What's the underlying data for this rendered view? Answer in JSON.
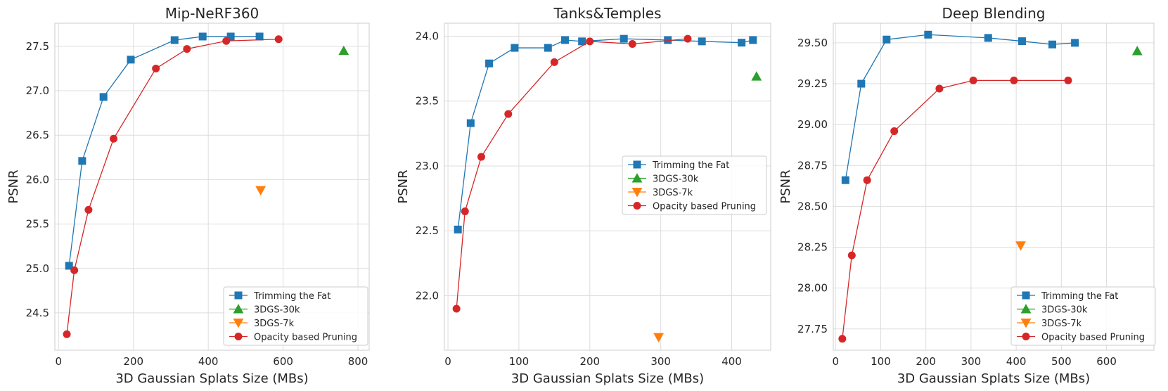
{
  "chart_data": [
    {
      "type": "line",
      "title": "Mip-NeRF360",
      "xlabel": "3D Gaussian Splats Size (MBs)",
      "ylabel": "PSNR",
      "xlim": [
        -10,
        830
      ],
      "ylim": [
        24.08,
        27.76
      ],
      "xticks": [
        0,
        200,
        400,
        600,
        800
      ],
      "yticks": [
        24.5,
        25.0,
        25.5,
        26.0,
        26.5,
        27.0,
        27.5
      ],
      "ytick_labels": [
        "24.5",
        "25.0",
        "25.5",
        "26.0",
        "26.5",
        "27.0",
        "27.5"
      ],
      "legend_position": "lower-right",
      "series": [
        {
          "name": "Trimming the Fat",
          "marker": "square",
          "color": "#1f77b4",
          "line": true,
          "x": [
            28,
            63,
            120,
            193,
            310,
            385,
            460,
            537
          ],
          "y": [
            25.03,
            26.21,
            26.93,
            27.35,
            27.57,
            27.61,
            27.61,
            27.61
          ]
        },
        {
          "name": "3DGS-30k",
          "marker": "triangle-up",
          "color": "#2ca02c",
          "line": false,
          "x": [
            762
          ],
          "y": [
            27.45
          ]
        },
        {
          "name": "3DGS-7k",
          "marker": "triangle-down",
          "color": "#ff7f0e",
          "line": false,
          "x": [
            540
          ],
          "y": [
            25.88
          ]
        },
        {
          "name": "Opacity based Pruning",
          "marker": "circle",
          "color": "#d62728",
          "line": true,
          "x": [
            22,
            42,
            80,
            147,
            260,
            343,
            448,
            588
          ],
          "y": [
            24.26,
            24.98,
            25.66,
            26.46,
            27.25,
            27.47,
            27.56,
            27.58
          ]
        }
      ]
    },
    {
      "type": "line",
      "title": "Tanks&Temples",
      "xlabel": "3D Gaussian Splats Size (MBs)",
      "ylabel": "PSNR",
      "xlim": [
        -5,
        455
      ],
      "ylim": [
        21.58,
        24.1
      ],
      "xticks": [
        0,
        100,
        200,
        300,
        400
      ],
      "yticks": [
        22.0,
        22.5,
        23.0,
        23.5,
        24.0
      ],
      "ytick_labels": [
        "22.0",
        "22.5",
        "23.0",
        "23.5",
        "24.0"
      ],
      "legend_position": "center-right",
      "series": [
        {
          "name": "Trimming the Fat",
          "marker": "square",
          "color": "#1f77b4",
          "line": true,
          "x": [
            14,
            32,
            58,
            94,
            141,
            165,
            189,
            248,
            310,
            358,
            414,
            430
          ],
          "y": [
            22.51,
            23.33,
            23.79,
            23.91,
            23.91,
            23.97,
            23.96,
            23.98,
            23.97,
            23.96,
            23.95,
            23.97
          ]
        },
        {
          "name": "3DGS-30k",
          "marker": "triangle-up",
          "color": "#2ca02c",
          "line": false,
          "x": [
            435
          ],
          "y": [
            23.69
          ]
        },
        {
          "name": "3DGS-7k",
          "marker": "triangle-down",
          "color": "#ff7f0e",
          "line": false,
          "x": [
            297
          ],
          "y": [
            21.68
          ]
        },
        {
          "name": "Opacity based Pruning",
          "marker": "circle",
          "color": "#d62728",
          "line": true,
          "x": [
            12,
            24,
            47,
            85,
            150,
            200,
            260,
            338
          ],
          "y": [
            21.9,
            22.65,
            23.07,
            23.4,
            23.8,
            23.96,
            23.94,
            23.98
          ]
        }
      ]
    },
    {
      "type": "line",
      "title": "Deep Blending",
      "xlabel": "3D Gaussian Splats Size (MBs)",
      "ylabel": "PSNR",
      "xlim": [
        -5,
        705
      ],
      "ylim": [
        27.62,
        29.62
      ],
      "xticks": [
        0,
        100,
        200,
        300,
        400,
        500,
        600
      ],
      "yticks": [
        27.75,
        28.0,
        28.25,
        28.5,
        28.75,
        29.0,
        29.25,
        29.5
      ],
      "ytick_labels": [
        "27.75",
        "28.00",
        "28.25",
        "28.50",
        "28.75",
        "29.00",
        "29.25",
        "29.50"
      ],
      "legend_position": "lower-right",
      "series": [
        {
          "name": "Trimming the Fat",
          "marker": "square",
          "color": "#1f77b4",
          "line": true,
          "x": [
            22,
            57,
            113,
            205,
            338,
            413,
            480,
            530
          ],
          "y": [
            28.66,
            29.25,
            29.52,
            29.55,
            29.53,
            29.51,
            29.49,
            29.5
          ]
        },
        {
          "name": "3DGS-30k",
          "marker": "triangle-up",
          "color": "#2ca02c",
          "line": false,
          "x": [
            668
          ],
          "y": [
            29.45
          ]
        },
        {
          "name": "3DGS-7k",
          "marker": "triangle-down",
          "color": "#ff7f0e",
          "line": false,
          "x": [
            410
          ],
          "y": [
            28.26
          ]
        },
        {
          "name": "Opacity based Pruning",
          "marker": "circle",
          "color": "#d62728",
          "line": true,
          "x": [
            15,
            36,
            70,
            130,
            230,
            305,
            395,
            515
          ],
          "y": [
            27.69,
            28.2,
            28.66,
            28.96,
            29.22,
            29.27,
            29.27,
            29.27
          ]
        }
      ]
    }
  ]
}
